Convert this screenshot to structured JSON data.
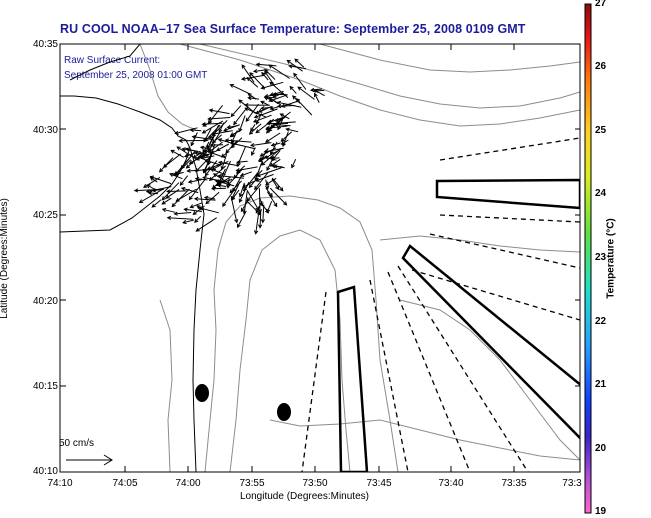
{
  "title": "RU COOL  NOAA–17  Sea Surface Temperature:  September 25, 2008 0109 GMT",
  "legend": {
    "line1": "Raw Surface Current:",
    "line2": "September 25, 2008 01:00 GMT",
    "scale_label": "50 cm/s"
  },
  "axes": {
    "xlabel": "Longitude (Degrees:Minutes)",
    "ylabel": "Latitude (Degrees:Minutes)",
    "xticks": [
      "74:10",
      "74:05",
      "74:00",
      "73:55",
      "73:50",
      "73:45",
      "73:40",
      "73:35",
      "73:3"
    ],
    "yticks": [
      "40:35",
      "40:30",
      "40:25",
      "40:20",
      "40:15",
      "40:10"
    ]
  },
  "colorbar": {
    "title": "Temperature (°C)",
    "ticks": [
      "27",
      "26",
      "25",
      "24",
      "23",
      "22",
      "21",
      "20",
      "19"
    ]
  },
  "colors": {
    "title_blue": "#1c1c9c",
    "land": "#ffffff",
    "contour": "#8c8c8c"
  },
  "icons": [
    "vector-arrow-icon",
    "buoy-marker-icon"
  ]
}
